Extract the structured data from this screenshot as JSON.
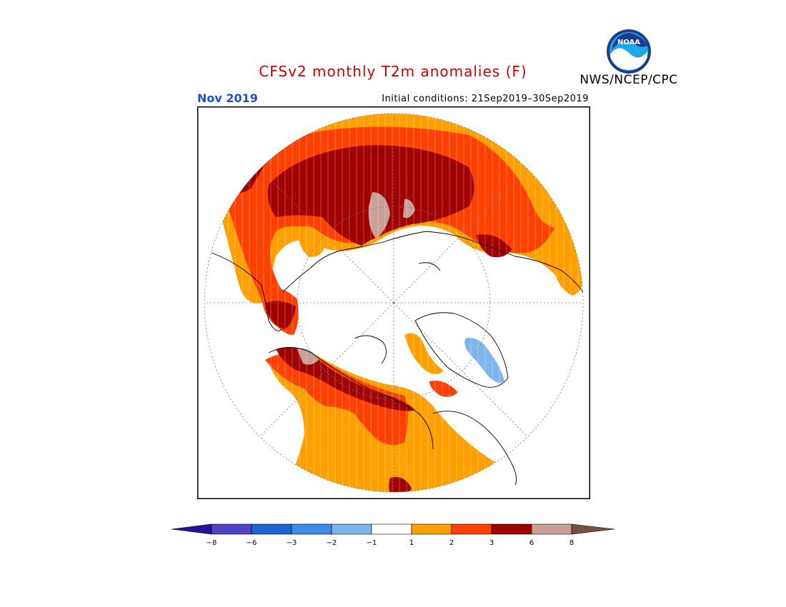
{
  "header": {
    "title": "CFSv2 monthly T2m anomalies (F)",
    "month": "Nov 2019",
    "initial_conditions": "Initial conditions: 21Sep2019–30Sep2019",
    "agency": "NWS/NCEP/CPC",
    "logo_text": "NOAA",
    "title_color": "#cc0000",
    "month_color": "#1f4fd8"
  },
  "legend": {
    "ticks": [
      "−8",
      "−6",
      "−3",
      "−2",
      "−1",
      "1",
      "2",
      "3",
      "6",
      "8"
    ],
    "colors": {
      "below_-8": "#2a0f9a",
      "-8_to_-6": "#5041c9",
      "-6_to_-3": "#1e64d0",
      "-3_to_-2": "#3c8ce6",
      "-2_to_-1": "#7cb6ec",
      "-1_to_1": "#ffffff",
      "1_to_2": "#ffa000",
      "2_to_3": "#ff4000",
      "3_to_6": "#a00000",
      "6_to_8": "#c8a096",
      "above_8": "#7a5040"
    }
  }
}
